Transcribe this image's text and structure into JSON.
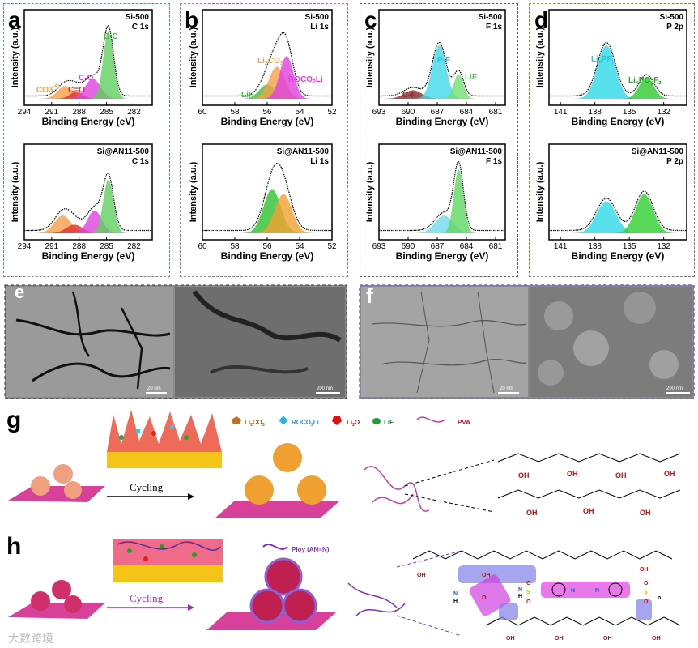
{
  "chart_data": [
    {
      "type": "line",
      "panel": "a",
      "title_top": "Si-500",
      "title_sub": "C 1s",
      "xlabel": "Binding Energy (eV)",
      "ylabel": "Intensity (a.u.)",
      "xlim": [
        294,
        280
      ],
      "xticks": [
        "294",
        "291",
        "288",
        "285",
        "282"
      ],
      "peaks": [
        {
          "name": "CO3 2-",
          "center": 289.5,
          "height": 0.18,
          "width": 1.2,
          "color": "#f5a04a"
        },
        {
          "name": "C=O",
          "center": 288.3,
          "height": 0.1,
          "width": 1.0,
          "color": "#e03030"
        },
        {
          "name": "C-O",
          "center": 286.5,
          "height": 0.28,
          "width": 1.2,
          "color": "#e040e0"
        },
        {
          "name": "C-C",
          "center": 284.8,
          "height": 0.95,
          "width": 0.8,
          "color": "#60d060"
        }
      ],
      "labels": [
        "CO3",
        "2-",
        "C=O",
        "C-O",
        "C-C"
      ]
    },
    {
      "type": "line",
      "panel": "a2",
      "title_top": "Si@AN11-500",
      "title_sub": "C 1s",
      "xlabel": "Binding Energy (eV)",
      "ylabel": "Intensity (a.u.)",
      "xlim": [
        294,
        280
      ],
      "xticks": [
        "294",
        "291",
        "288",
        "285",
        "282"
      ],
      "peaks": [
        {
          "name": "CO3 2-",
          "center": 289.8,
          "height": 0.25,
          "width": 1.3,
          "color": "#f5a04a"
        },
        {
          "name": "C=O",
          "center": 288.5,
          "height": 0.12,
          "width": 1.3,
          "color": "#e03030"
        },
        {
          "name": "C-O",
          "center": 286.3,
          "height": 0.32,
          "width": 1.1,
          "color": "#e040e0"
        },
        {
          "name": "C-C",
          "center": 284.8,
          "height": 0.75,
          "width": 0.8,
          "color": "#60d060"
        }
      ]
    },
    {
      "type": "line",
      "panel": "b",
      "title_top": "Si-500",
      "title_sub": "Li 1s",
      "xlabel": "Binding Energy (eV)",
      "ylabel": "Intensity (a.u.)",
      "xlim": [
        60,
        52
      ],
      "xticks": [
        "60",
        "58",
        "56",
        "54",
        "52"
      ],
      "peaks": [
        {
          "name": "LiF",
          "center": 56.0,
          "height": 0.2,
          "width": 0.7,
          "color": "#40c040"
        },
        {
          "name": "Li2CO3",
          "center": 55.4,
          "height": 0.45,
          "width": 0.7,
          "color": "#f5a04a"
        },
        {
          "name": "ROCO2Li",
          "center": 54.8,
          "height": 0.6,
          "width": 0.6,
          "color": "#e040e0"
        }
      ],
      "labels": [
        "LiF",
        "Li",
        "2",
        "CO",
        "3",
        "ROCO",
        "2",
        "Li"
      ]
    },
    {
      "type": "line",
      "panel": "b2",
      "title_top": "Si@AN11-500",
      "title_sub": "Li 1s",
      "xlabel": "Binding Energy (eV)",
      "ylabel": "Intensity (a.u.)",
      "xlim": [
        60,
        52
      ],
      "xticks": [
        "60",
        "58",
        "56",
        "54",
        "52"
      ],
      "peaks": [
        {
          "name": "LiF",
          "center": 55.7,
          "height": 0.62,
          "width": 0.75,
          "color": "#30c030"
        },
        {
          "name": "Li2CO3",
          "center": 55.0,
          "height": 0.55,
          "width": 0.75,
          "color": "#f5a030"
        }
      ]
    },
    {
      "type": "line",
      "panel": "c",
      "title_top": "Si-500",
      "title_sub": "F 1s",
      "xlabel": "Binding Energy (eV)",
      "ylabel": "Intensity (a.u.)",
      "xlim": [
        693,
        680
      ],
      "xticks": [
        "693",
        "690",
        "687",
        "684",
        "681"
      ],
      "peaks": [
        {
          "name": "C-F",
          "center": 689.5,
          "height": 0.12,
          "width": 1.3,
          "color": "#8b2b2b"
        },
        {
          "name": "P-F",
          "center": 686.8,
          "height": 0.75,
          "width": 1.0,
          "color": "#40d8e8"
        },
        {
          "name": "LiF",
          "center": 684.8,
          "height": 0.35,
          "width": 0.7,
          "color": "#70e070"
        }
      ],
      "labels": [
        "C-F",
        "P-F",
        "LiF"
      ]
    },
    {
      "type": "line",
      "panel": "c2",
      "title_top": "Si@AN11-500",
      "title_sub": "F 1s",
      "xlabel": "Binding Energy (eV)",
      "ylabel": "Intensity (a.u.)",
      "xlim": [
        693,
        680
      ],
      "xticks": [
        "693",
        "690",
        "687",
        "684",
        "681"
      ],
      "peaks": [
        {
          "name": "P-F",
          "center": 686.3,
          "height": 0.25,
          "width": 1.3,
          "color": "#70d8e8"
        },
        {
          "name": "LiF",
          "center": 684.8,
          "height": 0.9,
          "width": 0.7,
          "color": "#60d860"
        }
      ]
    },
    {
      "type": "line",
      "panel": "d",
      "title_top": "Si-500",
      "title_sub": "P 2p",
      "xlabel": "Binding Energy (eV)",
      "ylabel": "Intensity (a.u.)",
      "xlim": [
        142,
        130
      ],
      "xticks": [
        "141",
        "138",
        "135",
        "132"
      ],
      "peaks": [
        {
          "name": "LixPFy",
          "center": 137.0,
          "height": 0.75,
          "width": 1.1,
          "color": "#30d8e8"
        },
        {
          "name": "LixPOyFz",
          "center": 133.5,
          "height": 0.3,
          "width": 0.9,
          "color": "#30c830"
        }
      ],
      "labels": [
        "Li",
        "x",
        "PF",
        "y",
        "Li",
        "x",
        "PO",
        "y",
        "F",
        "z"
      ]
    },
    {
      "type": "line",
      "panel": "d2",
      "title_top": "Si@AN11-500",
      "title_sub": "P 2p",
      "xlabel": "Binding Energy (eV)",
      "ylabel": "Intensity (a.u.)",
      "xlim": [
        142,
        130
      ],
      "xticks": [
        "141",
        "138",
        "135",
        "132"
      ],
      "peaks": [
        {
          "name": "LixPFy",
          "center": 137.0,
          "height": 0.45,
          "width": 1.2,
          "color": "#30d8e8"
        },
        {
          "name": "LixPOyFz",
          "center": 133.7,
          "height": 0.55,
          "width": 1.1,
          "color": "#30d030"
        }
      ]
    }
  ],
  "panel_letters": [
    "a",
    "b",
    "c",
    "d",
    "e",
    "f",
    "g",
    "h"
  ],
  "sem": {
    "scale_e1": "20 nm",
    "scale_e2": "200 nm",
    "scale_f1": "20 nm",
    "scale_f2": "200 nm"
  },
  "schematic": {
    "legend": [
      "Li2CO3",
      "ROCO2Li",
      "Li2O",
      "LiF",
      "PVA"
    ],
    "legend_parts": [
      "Li",
      "2",
      "CO",
      "3",
      "ROCO",
      "2",
      "Li",
      "Li",
      "2",
      "O",
      "LiF",
      "PVA"
    ],
    "cycling": "Cycling",
    "poly_label": "Ploy (AN=N)",
    "oh": "OH",
    "atoms": [
      "H",
      "N",
      "O",
      "N",
      "H",
      "O",
      "S",
      "O",
      "N",
      "N",
      "S",
      "O",
      "O",
      "n"
    ],
    "watermark": "大数跨境"
  },
  "colors": {
    "green_border": "#5a9e6f",
    "pink_border": "#d060c0",
    "blue_border": "#5050c0",
    "purple_border": "#8060d0"
  }
}
